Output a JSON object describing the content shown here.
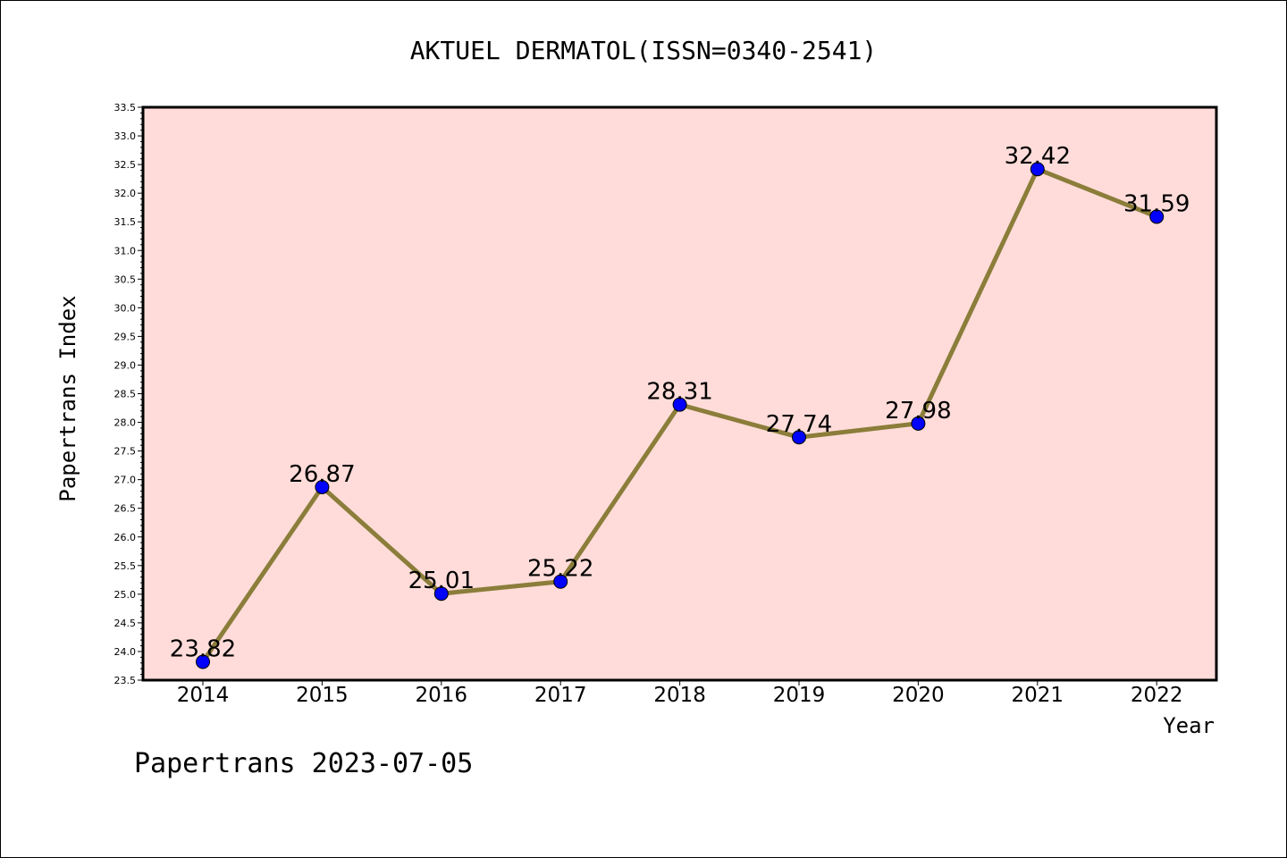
{
  "chart_data": {
    "type": "line",
    "title": "AKTUEL DERMATOL(ISSN=0340-2541)",
    "xlabel": "Year",
    "ylabel": "Papertrans Index",
    "categories": [
      "2014",
      "2015",
      "2016",
      "2017",
      "2018",
      "2019",
      "2020",
      "2021",
      "2022"
    ],
    "values": [
      23.82,
      26.87,
      25.01,
      25.22,
      28.31,
      27.74,
      27.98,
      32.42,
      31.59
    ],
    "data_labels": [
      "23.82",
      "26.87",
      "25.01",
      "25.22",
      "28.31",
      "27.74",
      "27.98",
      "32.42",
      "31.59"
    ],
    "ylim": [
      23.5,
      33.5
    ],
    "yticks": [
      "23.5",
      "24.0",
      "24.5",
      "25.0",
      "25.5",
      "26.0",
      "26.5",
      "27.0",
      "27.5",
      "28.0",
      "28.5",
      "29.0",
      "29.5",
      "30.0",
      "30.5",
      "31.0",
      "31.5",
      "32.0",
      "32.5",
      "33.0",
      "33.5"
    ],
    "grid": false,
    "colors": {
      "plot_background": "#ffdcd9",
      "line": "#8b7d3a",
      "marker": "#0000ff"
    }
  },
  "footer": "Papertrans 2023-07-05"
}
